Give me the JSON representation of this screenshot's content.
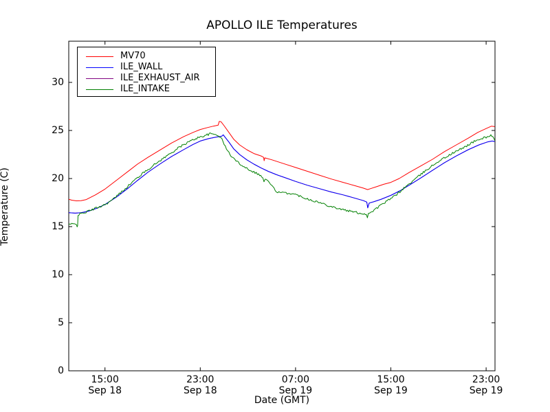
{
  "title": "APOLLO ILE Temperatures",
  "axes": {
    "xlabel": "Date (GMT)",
    "ylabel": "Temperature (C)"
  },
  "legend": {
    "items": [
      {
        "label": "MV70",
        "color": "#ff0000"
      },
      {
        "label": "ILE_WALL",
        "color": "#0000ff"
      },
      {
        "label": "ILE_EXHAUST_AIR",
        "color": "#800080"
      },
      {
        "label": "ILE_INTAKE",
        "color": "#007f00"
      }
    ]
  },
  "chart_data": {
    "type": "line",
    "title": "APOLLO ILE Temperatures",
    "xlabel": "Date (GMT)",
    "ylabel": "Temperature (C)",
    "x_unit": "hours since Sep 18 00:00 GMT",
    "xlim": [
      11.96,
      47.73
    ],
    "ylim": [
      0,
      34.3
    ],
    "grid": false,
    "legend_position": "upper left",
    "y_ticks": [
      0,
      5,
      10,
      15,
      20,
      25,
      30
    ],
    "x_ticks": [
      {
        "t": 15,
        "label": "15:00\nSep 18"
      },
      {
        "t": 23,
        "label": "23:00\nSep 18"
      },
      {
        "t": 31,
        "label": "07:00\nSep 19"
      },
      {
        "t": 39,
        "label": "15:00\nSep 19"
      },
      {
        "t": 47,
        "label": "23:00\nSep 19"
      }
    ],
    "series": [
      {
        "name": "MV70",
        "color": "#ff0000",
        "z": 3,
        "noise": 0,
        "points": [
          [
            11.96,
            17.85
          ],
          [
            12.2,
            17.75
          ],
          [
            12.6,
            17.68
          ],
          [
            13.0,
            17.7
          ],
          [
            13.4,
            17.8
          ],
          [
            14.2,
            18.3
          ],
          [
            15.0,
            18.9
          ],
          [
            16.0,
            19.85
          ],
          [
            17.0,
            20.8
          ],
          [
            17.73,
            21.5
          ],
          [
            18.6,
            22.2
          ],
          [
            19.6,
            22.95
          ],
          [
            20.6,
            23.7
          ],
          [
            21.6,
            24.35
          ],
          [
            22.4,
            24.8
          ],
          [
            23.0,
            25.1
          ],
          [
            23.6,
            25.3
          ],
          [
            24.1,
            25.45
          ],
          [
            24.5,
            25.55
          ],
          [
            24.6,
            25.95
          ],
          [
            24.75,
            25.9
          ],
          [
            25.0,
            25.5
          ],
          [
            25.4,
            24.8
          ],
          [
            25.8,
            24.1
          ],
          [
            26.3,
            23.5
          ],
          [
            26.9,
            23.0
          ],
          [
            27.5,
            22.6
          ],
          [
            28.1,
            22.35
          ],
          [
            28.32,
            22.2
          ],
          [
            28.36,
            21.85
          ],
          [
            28.42,
            22.15
          ],
          [
            29.0,
            21.95
          ],
          [
            30.0,
            21.55
          ],
          [
            31.0,
            21.15
          ],
          [
            32.0,
            20.75
          ],
          [
            33.0,
            20.35
          ],
          [
            34.0,
            19.95
          ],
          [
            35.0,
            19.6
          ],
          [
            36.0,
            19.25
          ],
          [
            36.7,
            19.0
          ],
          [
            37.05,
            18.85
          ],
          [
            37.3,
            18.95
          ],
          [
            37.8,
            19.15
          ],
          [
            38.4,
            19.4
          ],
          [
            39.0,
            19.6
          ],
          [
            39.7,
            20.0
          ],
          [
            40.5,
            20.6
          ],
          [
            41.5,
            21.3
          ],
          [
            42.5,
            22.0
          ],
          [
            43.5,
            22.8
          ],
          [
            44.5,
            23.5
          ],
          [
            45.5,
            24.2
          ],
          [
            46.3,
            24.8
          ],
          [
            47.0,
            25.2
          ],
          [
            47.45,
            25.45
          ],
          [
            47.73,
            25.4
          ]
        ]
      },
      {
        "name": "ILE_WALL",
        "color": "#0000ff",
        "z": 2,
        "noise": 0,
        "points": [
          [
            11.96,
            16.45
          ],
          [
            12.5,
            16.4
          ],
          [
            13.0,
            16.45
          ],
          [
            13.6,
            16.6
          ],
          [
            14.3,
            16.9
          ],
          [
            15.0,
            17.3
          ],
          [
            16.0,
            18.1
          ],
          [
            17.0,
            19.05
          ],
          [
            17.73,
            19.8
          ],
          [
            18.6,
            20.65
          ],
          [
            19.6,
            21.5
          ],
          [
            20.6,
            22.3
          ],
          [
            21.6,
            23.0
          ],
          [
            22.4,
            23.55
          ],
          [
            23.0,
            23.9
          ],
          [
            23.7,
            24.15
          ],
          [
            24.3,
            24.3
          ],
          [
            24.8,
            24.4
          ],
          [
            24.93,
            24.55
          ],
          [
            25.05,
            24.35
          ],
          [
            25.4,
            23.8
          ],
          [
            25.8,
            23.1
          ],
          [
            26.3,
            22.5
          ],
          [
            26.9,
            21.95
          ],
          [
            27.5,
            21.5
          ],
          [
            28.1,
            21.1
          ],
          [
            28.7,
            20.75
          ],
          [
            29.4,
            20.4
          ],
          [
            30.1,
            20.1
          ],
          [
            31.0,
            19.7
          ],
          [
            32.0,
            19.3
          ],
          [
            33.0,
            18.95
          ],
          [
            34.0,
            18.6
          ],
          [
            35.0,
            18.3
          ],
          [
            36.0,
            17.95
          ],
          [
            36.7,
            17.7
          ],
          [
            36.98,
            17.55
          ],
          [
            37.06,
            16.95
          ],
          [
            37.18,
            17.45
          ],
          [
            37.6,
            17.6
          ],
          [
            38.2,
            17.85
          ],
          [
            39.0,
            18.25
          ],
          [
            39.8,
            18.75
          ],
          [
            40.6,
            19.35
          ],
          [
            41.5,
            20.05
          ],
          [
            42.5,
            20.85
          ],
          [
            43.5,
            21.65
          ],
          [
            44.5,
            22.35
          ],
          [
            45.5,
            23.0
          ],
          [
            46.4,
            23.5
          ],
          [
            47.1,
            23.8
          ],
          [
            47.5,
            23.9
          ],
          [
            47.73,
            23.85
          ]
        ]
      },
      {
        "name": "ILE_EXHAUST_AIR",
        "color": "#800080",
        "z": 1,
        "noise": 0,
        "note": "coincides with ILE_WALL in plot (hidden behind it)",
        "points": [
          [
            11.96,
            16.45
          ],
          [
            12.5,
            16.4
          ],
          [
            13.0,
            16.45
          ],
          [
            13.6,
            16.6
          ],
          [
            14.3,
            16.9
          ],
          [
            15.0,
            17.3
          ],
          [
            16.0,
            18.1
          ],
          [
            17.0,
            19.05
          ],
          [
            17.73,
            19.8
          ],
          [
            18.6,
            20.65
          ],
          [
            19.6,
            21.5
          ],
          [
            20.6,
            22.3
          ],
          [
            21.6,
            23.0
          ],
          [
            22.4,
            23.55
          ],
          [
            23.0,
            23.9
          ],
          [
            23.7,
            24.15
          ],
          [
            24.3,
            24.3
          ],
          [
            24.8,
            24.4
          ],
          [
            24.93,
            24.55
          ],
          [
            25.05,
            24.35
          ],
          [
            25.4,
            23.8
          ],
          [
            25.8,
            23.1
          ],
          [
            26.3,
            22.5
          ],
          [
            26.9,
            21.95
          ],
          [
            27.5,
            21.5
          ],
          [
            28.1,
            21.1
          ],
          [
            28.7,
            20.75
          ],
          [
            29.4,
            20.4
          ],
          [
            30.1,
            20.1
          ],
          [
            31.0,
            19.7
          ],
          [
            32.0,
            19.3
          ],
          [
            33.0,
            18.95
          ],
          [
            34.0,
            18.6
          ],
          [
            35.0,
            18.3
          ],
          [
            36.0,
            17.95
          ],
          [
            36.7,
            17.7
          ],
          [
            36.98,
            17.55
          ],
          [
            37.06,
            16.95
          ],
          [
            37.18,
            17.45
          ],
          [
            37.6,
            17.6
          ],
          [
            38.2,
            17.85
          ],
          [
            39.0,
            18.25
          ],
          [
            39.8,
            18.75
          ],
          [
            40.6,
            19.35
          ],
          [
            41.5,
            20.05
          ],
          [
            42.5,
            20.85
          ],
          [
            43.5,
            21.65
          ],
          [
            44.5,
            22.35
          ],
          [
            45.5,
            23.0
          ],
          [
            46.4,
            23.5
          ],
          [
            47.1,
            23.8
          ],
          [
            47.5,
            23.9
          ],
          [
            47.73,
            23.85
          ]
        ]
      },
      {
        "name": "ILE_INTAKE",
        "color": "#007f00",
        "z": 4,
        "noise": 0.11,
        "points": [
          [
            11.96,
            15.25
          ],
          [
            12.4,
            15.25
          ],
          [
            12.6,
            15.2
          ],
          [
            12.66,
            15.05
          ],
          [
            12.7,
            15.2
          ],
          [
            12.74,
            16.2
          ],
          [
            13.0,
            16.35
          ],
          [
            13.5,
            16.55
          ],
          [
            14.2,
            16.9
          ],
          [
            15.0,
            17.3
          ],
          [
            15.6,
            17.75
          ],
          [
            16.1,
            18.3
          ],
          [
            16.6,
            18.85
          ],
          [
            17.1,
            19.4
          ],
          [
            17.73,
            20.1
          ],
          [
            18.6,
            20.95
          ],
          [
            19.6,
            21.85
          ],
          [
            20.6,
            22.7
          ],
          [
            21.3,
            23.3
          ],
          [
            22.0,
            23.8
          ],
          [
            22.7,
            24.2
          ],
          [
            23.3,
            24.45
          ],
          [
            23.85,
            24.65
          ],
          [
            24.2,
            24.6
          ],
          [
            24.5,
            24.5
          ],
          [
            24.72,
            24.3
          ],
          [
            25.0,
            23.6
          ],
          [
            25.3,
            22.85
          ],
          [
            25.7,
            22.2
          ],
          [
            26.2,
            21.65
          ],
          [
            26.8,
            21.15
          ],
          [
            27.4,
            20.75
          ],
          [
            27.9,
            20.45
          ],
          [
            28.25,
            20.1
          ],
          [
            28.35,
            19.65
          ],
          [
            28.45,
            19.95
          ],
          [
            28.8,
            19.6
          ],
          [
            29.1,
            19.1
          ],
          [
            29.3,
            18.75
          ],
          [
            29.6,
            18.55
          ],
          [
            30.0,
            18.5
          ],
          [
            30.6,
            18.45
          ],
          [
            31.2,
            18.25
          ],
          [
            32.0,
            17.9
          ],
          [
            33.0,
            17.5
          ],
          [
            34.0,
            17.1
          ],
          [
            35.0,
            16.75
          ],
          [
            36.0,
            16.5
          ],
          [
            36.6,
            16.35
          ],
          [
            36.95,
            16.3
          ],
          [
            37.03,
            15.9
          ],
          [
            37.12,
            16.4
          ],
          [
            37.4,
            16.55
          ],
          [
            37.8,
            16.9
          ],
          [
            38.3,
            17.35
          ],
          [
            38.8,
            17.75
          ],
          [
            39.4,
            18.25
          ],
          [
            40.1,
            19.0
          ],
          [
            41.0,
            19.9
          ],
          [
            42.0,
            20.9
          ],
          [
            43.0,
            21.8
          ],
          [
            44.0,
            22.5
          ],
          [
            45.0,
            23.15
          ],
          [
            46.0,
            23.85
          ],
          [
            46.6,
            24.15
          ],
          [
            47.1,
            24.35
          ],
          [
            47.4,
            24.5
          ],
          [
            47.55,
            24.35
          ],
          [
            47.73,
            23.95
          ]
        ]
      }
    ]
  }
}
